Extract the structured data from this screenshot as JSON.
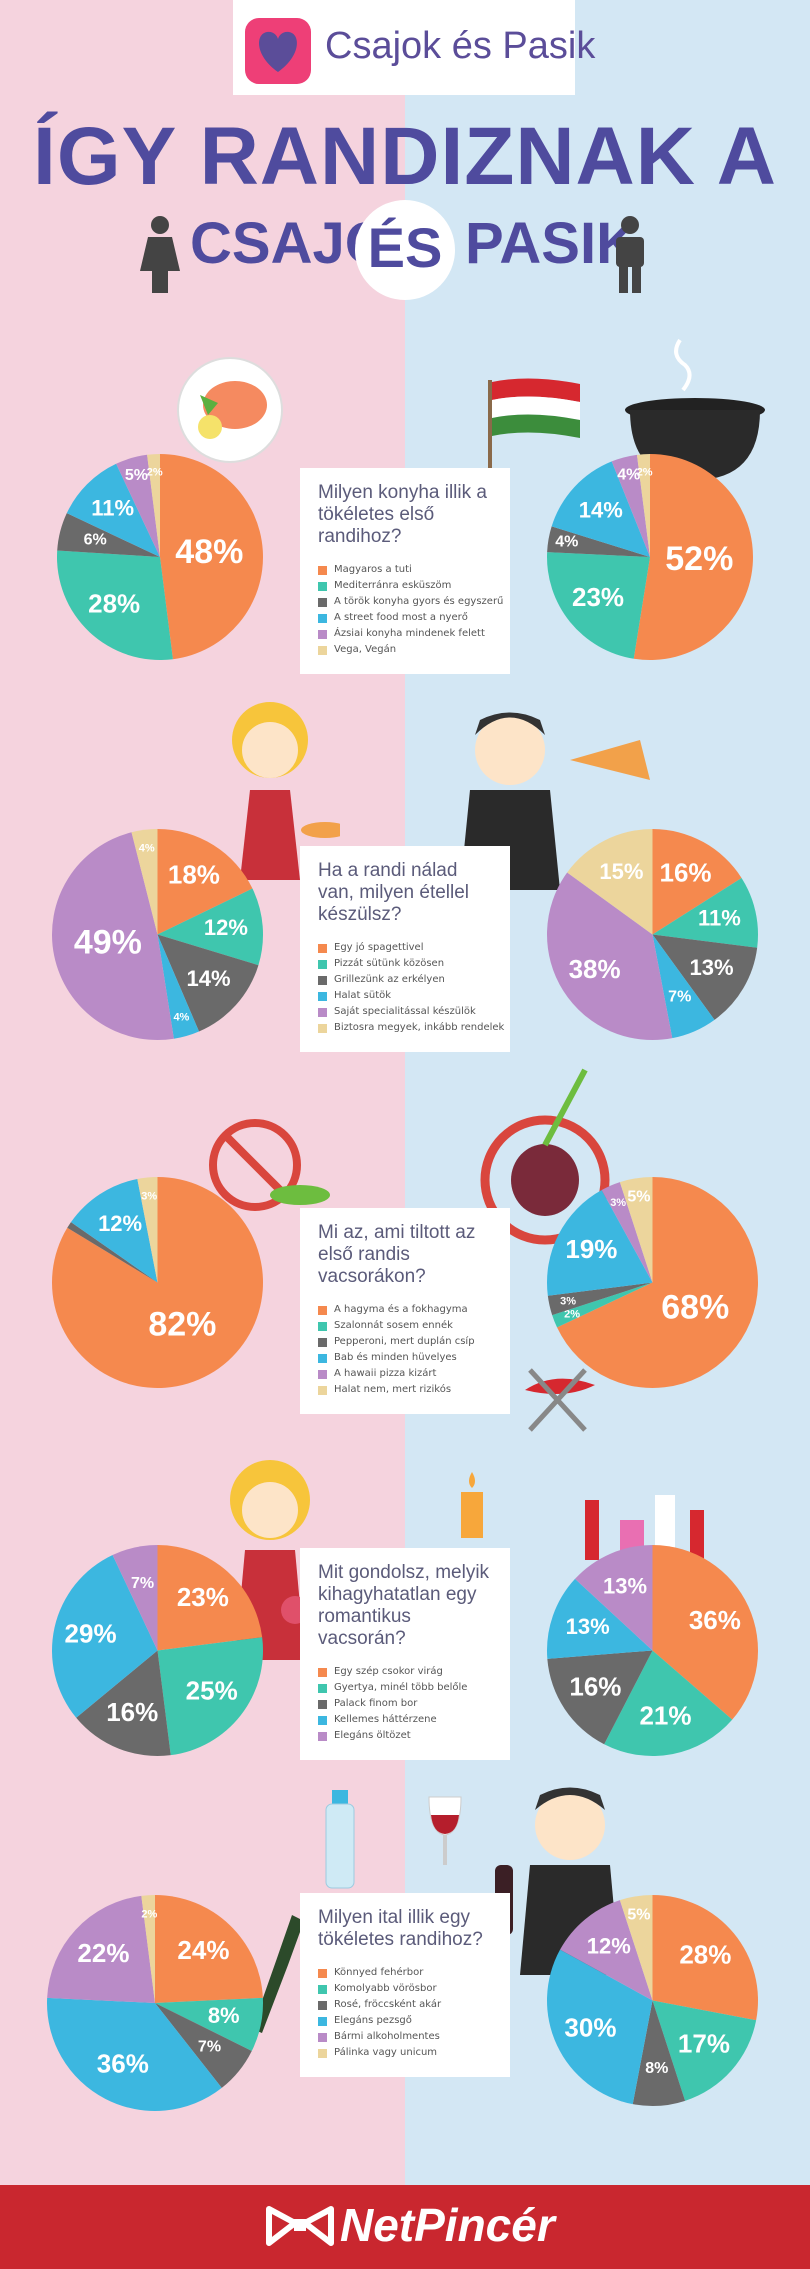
{
  "header": {
    "brand": "Csajok és Pasik"
  },
  "title": {
    "line1": "ÍGY RANDIZNAK A",
    "csajok": "CSAJOK",
    "es": "ÉS",
    "pasik": "PASIK"
  },
  "footer": {
    "brand": "NetPincér"
  },
  "colors": {
    "orange": "#f5894e",
    "teal": "#3fc6ae",
    "gray": "#6a6a6a",
    "blue": "#3cb7e0",
    "purple": "#b98bc7",
    "tan": "#ecd59c",
    "darkgray": "#555555"
  },
  "questions": [
    {
      "title": "Milyen konyha illik a tökéletes első randihoz?",
      "legend": [
        "Magyaros a tuti",
        "Mediterránra esküszöm",
        "A török konyha gyors és egyszerű",
        "A street food most a nyerő",
        "Ázsiai konyha mindenek felett",
        "Vega, Vegán"
      ]
    },
    {
      "title": "Ha a randi nálad van, milyen étellel készülsz?",
      "legend": [
        "Egy jó spagettivel",
        "Pizzát sütünk közösen",
        "Grillezünk az erkélyen",
        "Halat sütök",
        "Saját specialitással készülök",
        "Biztosra megyek, inkább rendelek"
      ]
    },
    {
      "title": "Mi az, ami tiltott az első randis vacsorákon?",
      "legend": [
        "A hagyma és a fokhagyma",
        "Szalonnát sosem ennék",
        "Pepperoni, mert duplán csíp",
        "Bab és minden hüvelyes",
        "A hawaii pizza kizárt",
        "Halat nem, mert rizikós"
      ]
    },
    {
      "title": "Mit gondolsz, melyik kihagyhatatlan egy romantikus vacsorán?",
      "legend": [
        "Egy szép csokor virág",
        "Gyertya, minél több belőle",
        "Palack finom bor",
        "Kellemes háttérzene",
        "Elegáns öltözet"
      ]
    },
    {
      "title": "Milyen ital illik egy tökéletes randihoz?",
      "legend": [
        "Könnyed fehérbor",
        "Komolyabb vörösbor",
        "Rosé, fröccsként akár",
        "Elegáns pezsgő",
        "Bármi alkoholmentes",
        "Pálinka vagy unicum"
      ]
    }
  ],
  "chart_data": [
    {
      "type": "pie",
      "group": "Csajok",
      "question": 1,
      "categories": [
        "Magyaros a tuti",
        "Mediterránra esküszöm",
        "A török konyha gyors és egyszerű",
        "A street food most a nyerő",
        "Ázsiai konyha mindenek felett",
        "Vega, Vegán"
      ],
      "values": [
        48,
        28,
        6,
        11,
        5,
        2
      ],
      "labels": [
        "48%",
        "28%",
        "6%",
        "11%",
        "5%",
        "2%"
      ]
    },
    {
      "type": "pie",
      "group": "Pasik",
      "question": 1,
      "categories": [
        "Magyaros a tuti",
        "Mediterránra esküszöm",
        "A török konyha gyors és egyszerű",
        "A street food most a nyerő",
        "Ázsiai konyha mindenek felett",
        "Vega, Vegán"
      ],
      "values": [
        52,
        23,
        4,
        14,
        4,
        2
      ],
      "labels": [
        "52%",
        "23%",
        "4%",
        "14%",
        "4%",
        "2%"
      ]
    },
    {
      "type": "pie",
      "group": "Csajok",
      "question": 2,
      "categories": [
        "Egy jó spagettivel",
        "Pizzát sütünk közösen",
        "Grillezünk az erkélyen",
        "Halat sütök",
        "Saját specialitással készülök",
        "Biztosra megyek, inkább rendelek"
      ],
      "values": [
        18,
        12,
        14,
        4,
        49,
        4
      ],
      "labels": [
        "18%",
        "12%",
        "14%",
        "4%",
        "49%",
        "4%"
      ]
    },
    {
      "type": "pie",
      "group": "Pasik",
      "question": 2,
      "categories": [
        "Egy jó spagettivel",
        "Pizzát sütünk közösen",
        "Grillezünk az erkélyen",
        "Halat sütök",
        "Saját specialitással készülök",
        "Biztosra megyek, inkább rendelek"
      ],
      "values": [
        16,
        11,
        13,
        7,
        38,
        15
      ],
      "labels": [
        "16%",
        "11%",
        "13%",
        "7%",
        "38%",
        "15%"
      ]
    },
    {
      "type": "pie",
      "group": "Csajok",
      "question": 3,
      "categories": [
        "A hagyma és a fokhagyma",
        "Szalonnát sosem ennék",
        "Pepperoni, mert duplán csíp",
        "Bab és minden hüvelyes",
        "A hawaii pizza kizárt",
        "Halat nem, mert rizikós"
      ],
      "values": [
        82,
        0,
        1,
        12,
        0,
        3
      ],
      "labels": [
        "82%",
        "",
        "",
        "12%",
        "",
        "3%"
      ]
    },
    {
      "type": "pie",
      "group": "Pasik",
      "question": 3,
      "categories": [
        "A hagyma és a fokhagyma",
        "Szalonnát sosem ennék",
        "Pepperoni, mert duplán csíp",
        "Bab és minden hüvelyes",
        "A hawaii pizza kizárt",
        "Halat nem, mert rizikós"
      ],
      "values": [
        68,
        2,
        3,
        19,
        3,
        5
      ],
      "labels": [
        "68%",
        "2%",
        "3%",
        "19%",
        "3%",
        "5%"
      ]
    },
    {
      "type": "pie",
      "group": "Csajok",
      "question": 4,
      "categories": [
        "Egy szép csokor virág",
        "Gyertya, minél több belőle",
        "Palack finom bor",
        "Kellemes háttérzene",
        "Elegáns öltözet"
      ],
      "values": [
        23,
        25,
        16,
        29,
        7
      ],
      "labels": [
        "23%",
        "25%",
        "16%",
        "29%",
        "7%"
      ]
    },
    {
      "type": "pie",
      "group": "Pasik",
      "question": 4,
      "categories": [
        "Egy szép csokor virág",
        "Gyertya, minél több belőle",
        "Palack finom bor",
        "Kellemes háttérzene",
        "Elegáns öltözet"
      ],
      "values": [
        36,
        21,
        16,
        13,
        13
      ],
      "labels": [
        "36%",
        "21%",
        "16%",
        "13%",
        "13%"
      ]
    },
    {
      "type": "pie",
      "group": "Csajok",
      "question": 5,
      "categories": [
        "Könnyed fehérbor",
        "Komolyabb vörösbor",
        "Rosé, fröccsként akár",
        "Elegáns pezsgő",
        "Bármi alkoholmentes",
        "Pálinka vagy unicum"
      ],
      "values": [
        24,
        8,
        7,
        36,
        22,
        2
      ],
      "labels": [
        "24%",
        "8%",
        "7%",
        "36%",
        "22%",
        "2%"
      ]
    },
    {
      "type": "pie",
      "group": "Pasik",
      "question": 5,
      "categories": [
        "Könnyed fehérbor",
        "Komolyabb vörösbor",
        "Rosé, fröccsként akár",
        "Elegáns pezsgő",
        "Bármi alkoholmentes",
        "Pálinka vagy unicum"
      ],
      "values": [
        28,
        17,
        8,
        30,
        12,
        5
      ],
      "labels": [
        "28%",
        "17%",
        "8%",
        "30%",
        "12%",
        "5%"
      ]
    }
  ]
}
